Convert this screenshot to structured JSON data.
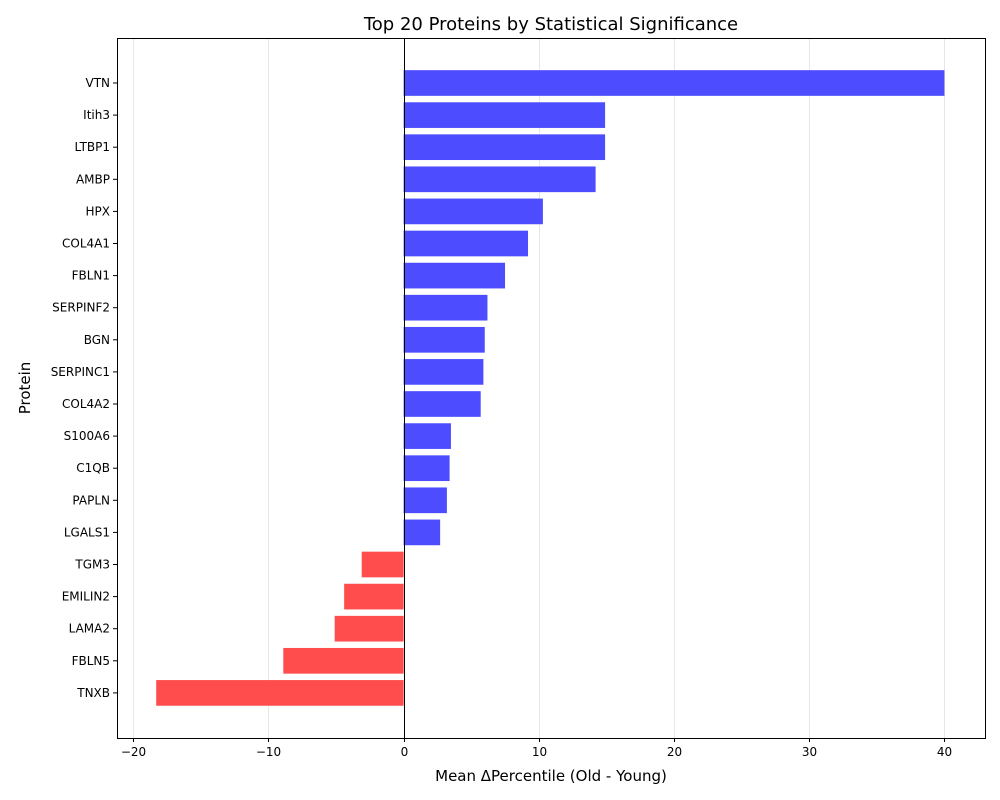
{
  "chart_data": {
    "type": "bar",
    "orientation": "horizontal",
    "title": "Top 20 Proteins by Statistical Significance",
    "xlabel": "Mean ΔPercentile (Old - Young)",
    "ylabel": "Protein",
    "xlim": [
      -21.2,
      43.0
    ],
    "xticks": [
      -20,
      -10,
      0,
      10,
      20,
      30,
      40
    ],
    "xtick_labels": [
      "−20",
      "−10",
      "0",
      "10",
      "20",
      "30",
      "40"
    ],
    "grid": "x",
    "zero_line": true,
    "colors": {
      "positive": "#4d4dff",
      "negative": "#ff4d4d"
    },
    "categories": [
      "VTN",
      "Itih3",
      "LTBP1",
      "AMBP",
      "HPX",
      "COL4A1",
      "FBLN1",
      "SERPINF2",
      "BGN",
      "SERPINC1",
      "COL4A2",
      "S100A6",
      "C1QB",
      "PAPLN",
      "LGALS1",
      "TGM3",
      "EMILIN2",
      "LAMA2",
      "FBLN5",
      "TNXB"
    ],
    "values": [
      40.0,
      14.9,
      14.9,
      14.2,
      10.3,
      9.2,
      7.5,
      6.2,
      6.0,
      5.9,
      5.7,
      3.5,
      3.4,
      3.2,
      2.7,
      -3.1,
      -4.4,
      -5.1,
      -8.9,
      -18.3
    ]
  }
}
